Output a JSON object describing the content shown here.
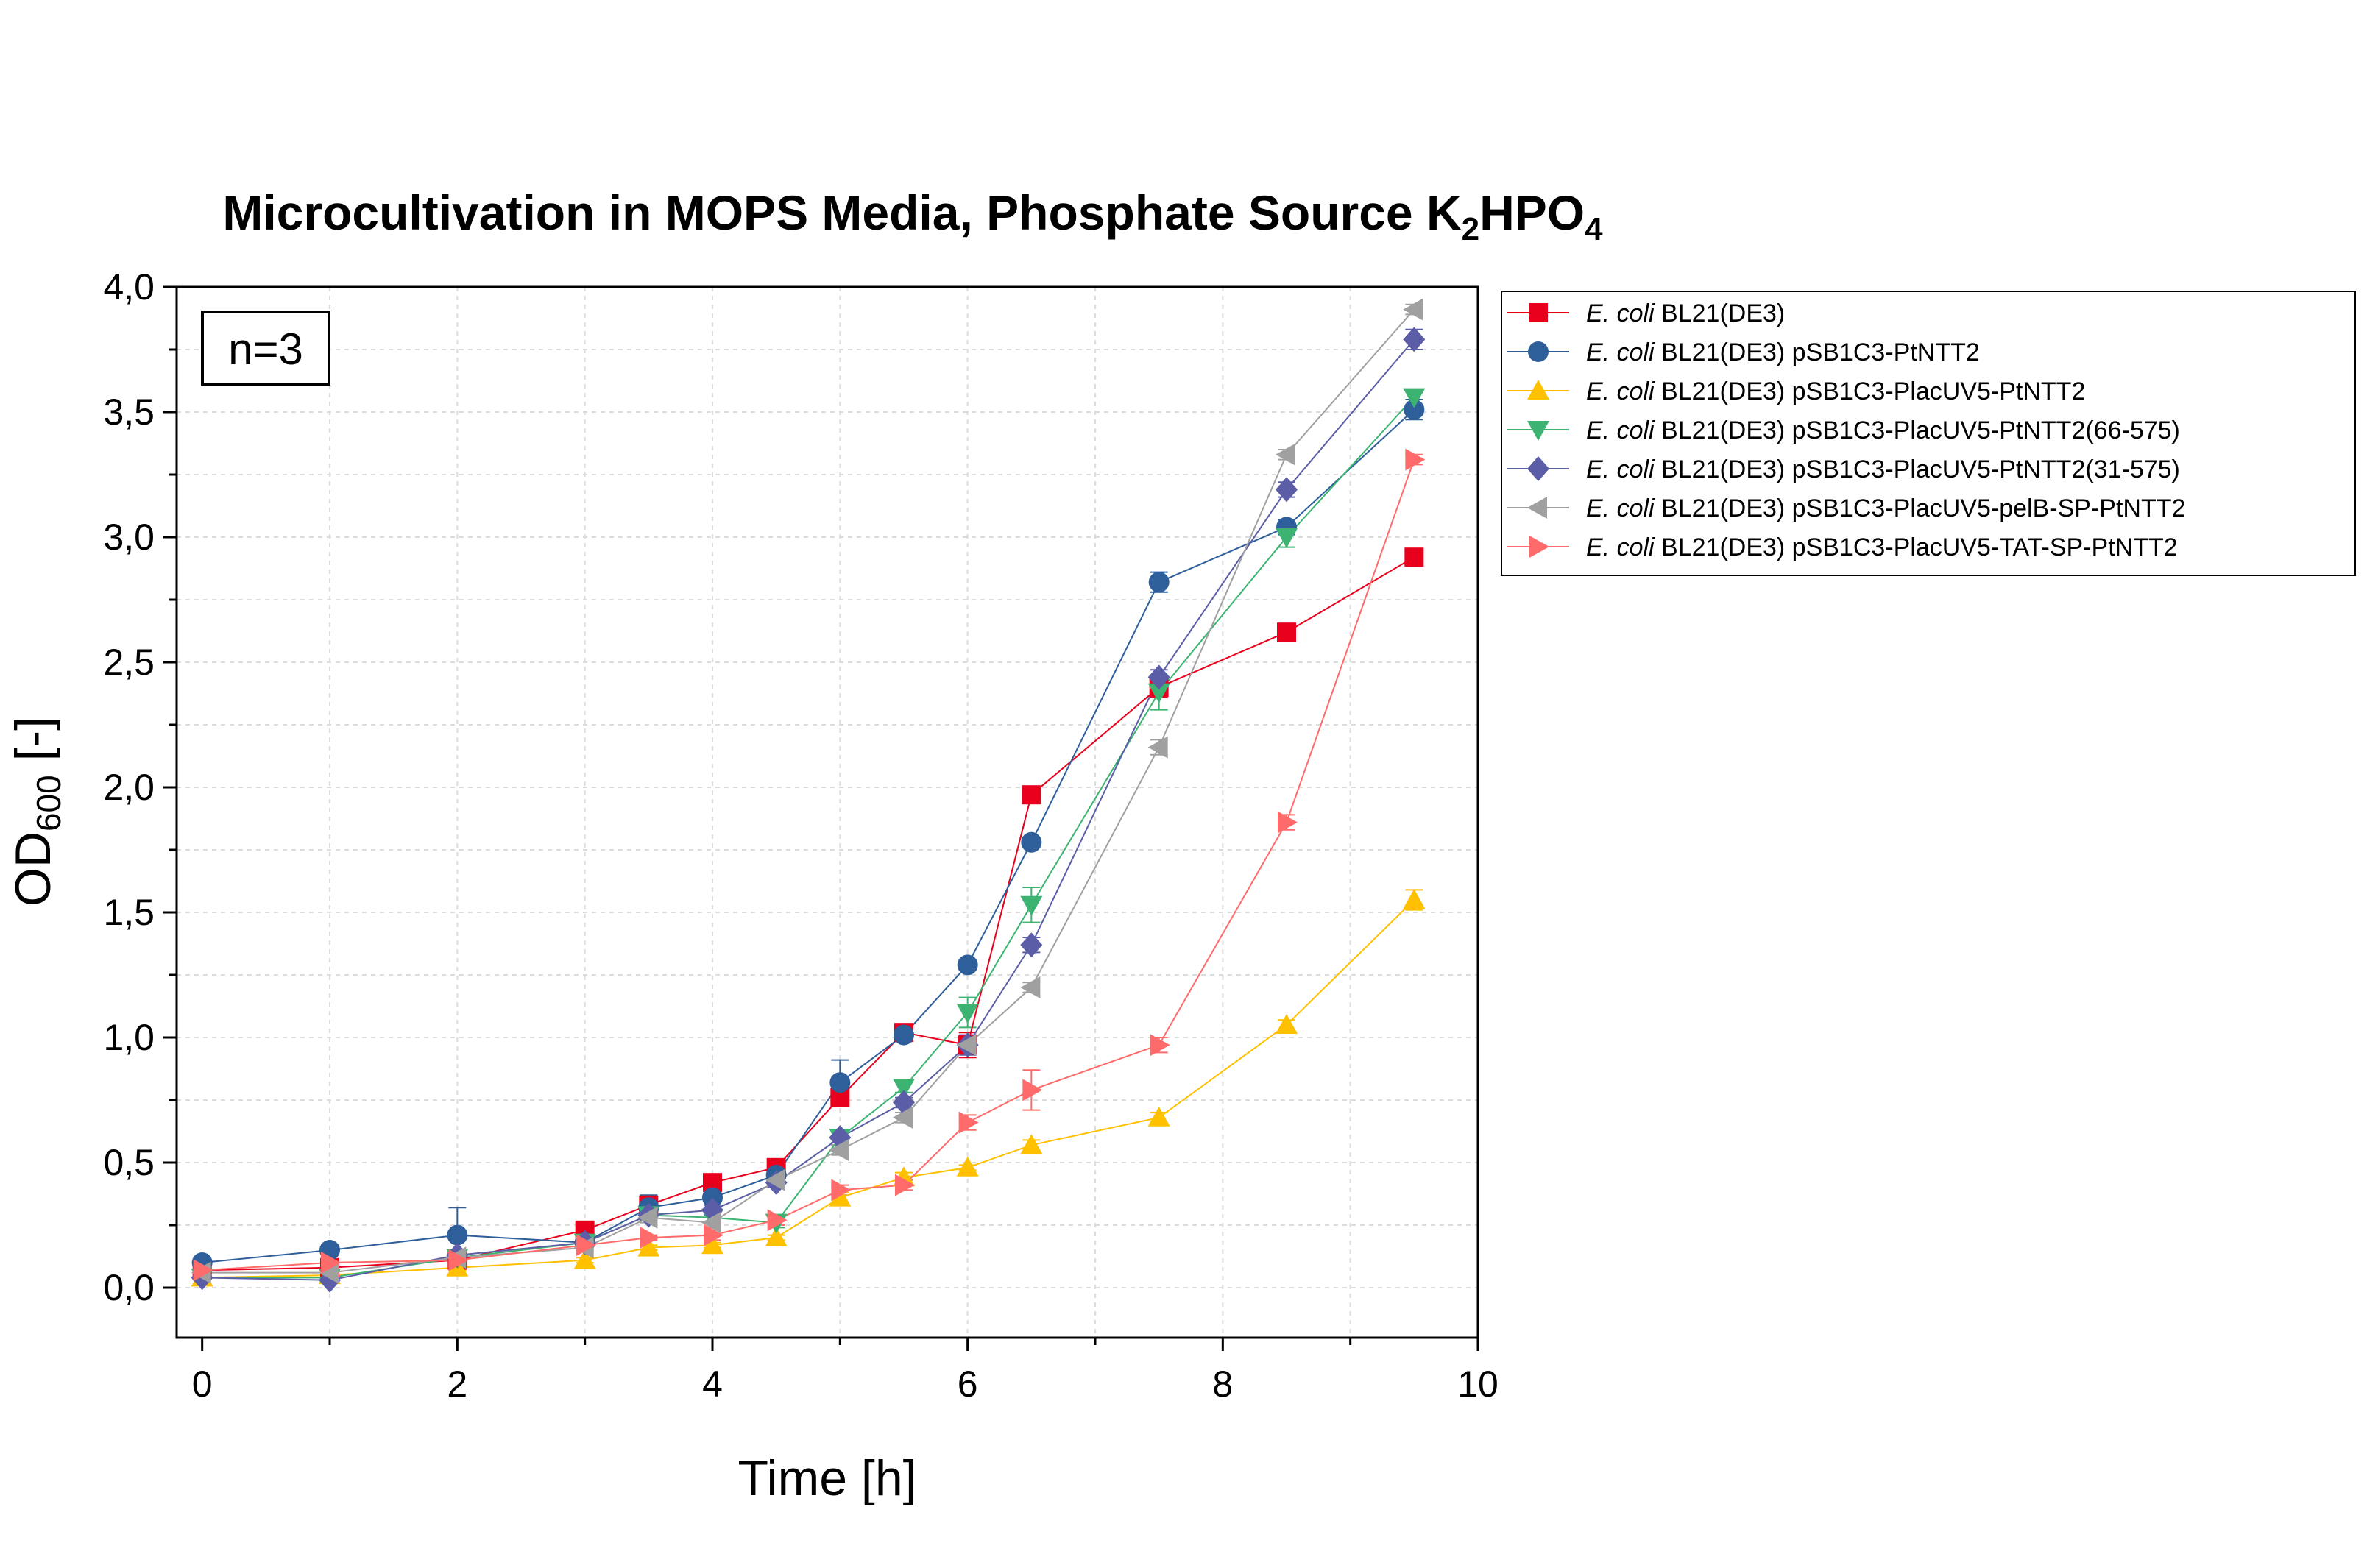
{
  "chart_data": {
    "type": "line",
    "title": "Microcultivation in MOPS Media, Phosphate Source K",
    "title_sub1": "2",
    "title_mid": "HPO",
    "title_sub2": "4",
    "xlabel": "Time [h]",
    "ylabel_main": "OD",
    "ylabel_sub": "600",
    "ylabel_suffix": " [-]",
    "xlim": [
      -0.2,
      10
    ],
    "ylim": [
      -0.2,
      4.0
    ],
    "x_ticks": [
      0,
      2,
      4,
      6,
      8,
      10
    ],
    "x_tick_labels": [
      "0",
      "2",
      "4",
      "6",
      "8",
      "10"
    ],
    "y_ticks": [
      0,
      0.5,
      1,
      1.5,
      2,
      2.5,
      3,
      3.5,
      4
    ],
    "y_tick_labels": [
      "0,0",
      "0,5",
      "1,0",
      "1,5",
      "2,0",
      "2,5",
      "3,0",
      "3,5",
      "4,0"
    ],
    "grid": true,
    "legend_position": "right-top",
    "annotation": "n=3",
    "x": [
      0,
      1,
      2,
      3,
      3.5,
      4,
      4.5,
      5,
      5.5,
      6,
      6.5,
      7.5,
      8.5,
      9.5
    ],
    "series": [
      {
        "legend_italic": "E. coli",
        "legend_rest": " BL21(DE3)",
        "color": "#e8001c",
        "marker": "square",
        "values": [
          0.07,
          0.08,
          0.11,
          0.23,
          0.33,
          0.42,
          0.48,
          0.76,
          1.02,
          0.97,
          1.97,
          2.4,
          2.62,
          2.92
        ],
        "errors": [
          0.02,
          0.01,
          0.02,
          0.02,
          0.03,
          0.02,
          0.02,
          0.03,
          0.02,
          0.05,
          0.02,
          0.04,
          0.02,
          0.02
        ]
      },
      {
        "legend_italic": "E. coli",
        "legend_rest": " BL21(DE3) pSB1C3-PtNTT2",
        "color": "#2f5f9b",
        "marker": "circle",
        "values": [
          0.1,
          0.15,
          0.21,
          0.18,
          0.32,
          0.36,
          0.45,
          0.82,
          1.01,
          1.29,
          1.78,
          2.82,
          3.04,
          3.51
        ],
        "errors": [
          0.02,
          0.02,
          0.11,
          0.02,
          0.05,
          0.04,
          0.02,
          0.09,
          0.02,
          0.02,
          0.02,
          0.04,
          0.03,
          0.04
        ]
      },
      {
        "legend_italic": "E. coli",
        "legend_rest": " BL21(DE3) pSB1C3-PlacUV5-PtNTT2",
        "color": "#ffc000",
        "marker": "triangle-up",
        "values": [
          0.04,
          0.05,
          0.08,
          0.11,
          0.16,
          0.17,
          0.2,
          0.36,
          0.44,
          0.48,
          0.57,
          0.68,
          1.05,
          1.55
        ],
        "errors": [
          0.01,
          0.01,
          0.01,
          0.01,
          0.01,
          0.01,
          0.01,
          0.02,
          0.02,
          0.01,
          0.02,
          0.02,
          0.02,
          0.04
        ]
      },
      {
        "legend_italic": "E. coli",
        "legend_rest": " BL21(DE3) pSB1C3-PlacUV5-PtNTT2(66-575)",
        "color": "#3cb371",
        "marker": "triangle-down",
        "values": [
          0.04,
          0.04,
          0.12,
          0.18,
          0.29,
          0.28,
          0.26,
          0.6,
          0.8,
          1.1,
          1.53,
          2.38,
          3.0,
          3.56
        ],
        "errors": [
          0.01,
          0.01,
          0.01,
          0.01,
          0.02,
          0.02,
          0.02,
          0.03,
          0.02,
          0.06,
          0.07,
          0.07,
          0.04,
          0.03
        ]
      },
      {
        "legend_italic": "E. coli",
        "legend_rest": " BL21(DE3) pSB1C3-PlacUV5-PtNTT2(31-575)",
        "color": "#5b5ea6",
        "marker": "diamond",
        "values": [
          0.04,
          0.03,
          0.13,
          0.18,
          0.29,
          0.31,
          0.42,
          0.6,
          0.74,
          0.97,
          1.37,
          2.44,
          3.19,
          3.79
        ],
        "errors": [
          0.01,
          0.01,
          0.01,
          0.01,
          0.02,
          0.02,
          0.02,
          0.02,
          0.02,
          0.04,
          0.03,
          0.03,
          0.03,
          0.04
        ]
      },
      {
        "legend_italic": "E. coli",
        "legend_rest": " BL21(DE3) pSB1C3-PlacUV5-pelB-SP-PtNTT2",
        "color": "#a0a0a0",
        "marker": "triangle-left",
        "values": [
          0.06,
          0.06,
          0.12,
          0.16,
          0.28,
          0.26,
          0.43,
          0.55,
          0.68,
          0.97,
          1.2,
          2.16,
          3.33,
          3.91
        ],
        "errors": [
          0.01,
          0.01,
          0.01,
          0.01,
          0.02,
          0.02,
          0.02,
          0.02,
          0.02,
          0.02,
          0.02,
          0.03,
          0.02,
          0.02
        ]
      },
      {
        "legend_italic": "E. coli",
        "legend_rest": " BL21(DE3) pSB1C3-PlacUV5-TAT-SP-PtNTT2",
        "color": "#ff6b6b",
        "marker": "triangle-right",
        "values": [
          0.07,
          0.1,
          0.11,
          0.17,
          0.2,
          0.21,
          0.27,
          0.39,
          0.41,
          0.66,
          0.79,
          0.97,
          1.86,
          3.31
        ],
        "errors": [
          0.01,
          0.01,
          0.01,
          0.01,
          0.01,
          0.02,
          0.02,
          0.02,
          0.02,
          0.03,
          0.08,
          0.03,
          0.03,
          0.02
        ]
      }
    ]
  }
}
